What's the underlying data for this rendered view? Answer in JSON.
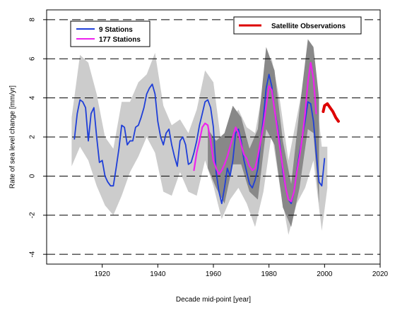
{
  "chart_data": {
    "type": "line",
    "title": "",
    "xlabel": "Decade mid-point [year]",
    "ylabel": "Rate of sea level change [mm/yr]",
    "xlim": [
      1900,
      2020
    ],
    "ylim": [
      -4.5,
      8.5
    ],
    "x_ticks": [
      1920,
      1940,
      1960,
      1980,
      2000,
      2020
    ],
    "y_ticks": [
      -4,
      -2,
      0,
      2,
      4,
      6,
      8
    ],
    "dashed_y_gridlines": [
      -4,
      -2,
      0,
      2,
      4,
      6,
      8
    ],
    "legend_left": {
      "position": "top-left",
      "entries": [
        "9 Stations",
        "177 Stations"
      ]
    },
    "legend_right": {
      "position": "top-right",
      "entries": [
        "Satellite Observations"
      ]
    },
    "colors": {
      "nine_stations": "#1f3fd8",
      "one77_stations": "#ee22ee",
      "satellite": "#dd0000",
      "band_light": "#cccccc",
      "band_dark": "#888888"
    },
    "series": [
      {
        "name": "9 Stations",
        "x": [
          1910,
          1911,
          1912,
          1913,
          1914,
          1915,
          1916,
          1917,
          1918,
          1919,
          1920,
          1921,
          1922,
          1923,
          1924,
          1925,
          1926,
          1927,
          1928,
          1929,
          1930,
          1931,
          1932,
          1933,
          1934,
          1935,
          1936,
          1937,
          1938,
          1939,
          1940,
          1941,
          1942,
          1943,
          1944,
          1945,
          1946,
          1947,
          1948,
          1949,
          1950,
          1951,
          1952,
          1953,
          1954,
          1955,
          1956,
          1957,
          1958,
          1959,
          1960,
          1961,
          1962,
          1963,
          1964,
          1965,
          1966,
          1967,
          1968,
          1969,
          1970,
          1971,
          1972,
          1973,
          1974,
          1975,
          1976,
          1977,
          1978,
          1979,
          1980,
          1981,
          1982,
          1983,
          1984,
          1985,
          1986,
          1987,
          1988,
          1989,
          1990,
          1991,
          1992,
          1993,
          1994,
          1995,
          1996,
          1997,
          1998,
          1999,
          2000
        ],
        "values": [
          1.9,
          3.2,
          3.9,
          3.8,
          3.5,
          1.8,
          3.2,
          3.5,
          2.0,
          0.7,
          0.8,
          0.0,
          -0.3,
          -0.5,
          -0.5,
          0.4,
          1.4,
          2.6,
          2.5,
          1.6,
          1.8,
          1.8,
          2.5,
          2.6,
          3.0,
          3.5,
          4.2,
          4.5,
          4.7,
          4.2,
          2.8,
          2.0,
          1.6,
          2.2,
          2.4,
          1.6,
          1.0,
          0.5,
          1.8,
          2.0,
          1.6,
          0.6,
          0.7,
          1.2,
          1.8,
          2.6,
          3.2,
          3.8,
          3.9,
          3.5,
          2.5,
          0.2,
          -0.8,
          -1.4,
          -0.6,
          0.4,
          0.0,
          0.8,
          2.2,
          2.4,
          1.8,
          0.8,
          0.2,
          -0.4,
          -0.6,
          -0.2,
          0.4,
          1.8,
          3.0,
          4.5,
          5.2,
          4.6,
          3.4,
          2.6,
          1.6,
          0.2,
          -0.6,
          -1.2,
          -1.4,
          -0.8,
          0.3,
          1.2,
          2.0,
          2.8,
          3.8,
          3.7,
          2.8,
          1.2,
          -0.3,
          -0.5,
          0.9
        ]
      },
      {
        "name": "177 Stations",
        "x": [
          1953,
          1954,
          1955,
          1956,
          1957,
          1958,
          1959,
          1960,
          1961,
          1962,
          1963,
          1964,
          1965,
          1966,
          1967,
          1968,
          1969,
          1970,
          1971,
          1972,
          1973,
          1974,
          1975,
          1976,
          1977,
          1978,
          1979,
          1980,
          1981,
          1982,
          1983,
          1984,
          1985,
          1986,
          1987,
          1988,
          1989,
          1990,
          1991,
          1992,
          1993,
          1994,
          1995,
          1996,
          1997
        ],
        "values": [
          0.3,
          1.2,
          1.8,
          2.5,
          2.7,
          2.6,
          1.8,
          0.8,
          0.4,
          0.1,
          0.3,
          0.6,
          1.0,
          1.5,
          2.0,
          2.5,
          2.2,
          1.6,
          1.1,
          0.9,
          0.5,
          0.3,
          0.4,
          1.0,
          1.8,
          2.6,
          3.6,
          4.6,
          4.4,
          3.4,
          2.4,
          1.4,
          0.4,
          -0.6,
          -1.2,
          -1.3,
          -0.8,
          0.2,
          1.0,
          2.0,
          3.2,
          4.8,
          5.8,
          5.0,
          3.2
        ]
      },
      {
        "name": "Satellite Observations",
        "x": [
          1999.5,
          2000,
          2001,
          2002,
          2003,
          2004,
          2005
        ],
        "values": [
          3.3,
          3.6,
          3.7,
          3.5,
          3.3,
          3.0,
          2.8
        ]
      }
    ],
    "uncertainty_bands": [
      {
        "shade": "light",
        "x": [
          1909,
          1912,
          1915,
          1918,
          1921,
          1924,
          1927,
          1930,
          1933,
          1936,
          1939,
          1942,
          1945,
          1948,
          1951,
          1954,
          1957,
          1960,
          1963,
          1966,
          1969,
          1972,
          1975,
          1978,
          1981,
          1984,
          1987,
          1990,
          1993,
          1996,
          1999,
          2001
        ],
        "upper": [
          3.0,
          6.2,
          5.8,
          4.2,
          2.0,
          1.4,
          3.8,
          3.8,
          4.8,
          5.2,
          6.3,
          3.6,
          2.6,
          2.9,
          2.2,
          3.4,
          5.4,
          4.8,
          1.5,
          2.8,
          3.4,
          2.5,
          2.2,
          4.6,
          6.0,
          3.8,
          0.8,
          3.0,
          5.2,
          5.6,
          1.5,
          1.5
        ],
        "lower": [
          0.5,
          1.5,
          0.8,
          -0.5,
          -1.5,
          -2.0,
          -1.0,
          0.2,
          1.0,
          2.0,
          1.2,
          -0.8,
          -1.0,
          0.2,
          -0.8,
          -1.0,
          0.8,
          -0.5,
          -2.2,
          -1.2,
          -0.6,
          -1.4,
          -2.6,
          -0.8,
          2.2,
          -0.6,
          -3.0,
          -1.4,
          -0.6,
          0.8,
          -2.8,
          -0.6
        ]
      },
      {
        "shade": "dark",
        "x": [
          1958,
          1961,
          1964,
          1967,
          1970,
          1973,
          1976,
          1979,
          1982,
          1985,
          1988,
          1991,
          1994,
          1996,
          1998
        ],
        "upper": [
          2.4,
          1.8,
          2.2,
          3.6,
          3.0,
          1.4,
          2.4,
          6.6,
          5.4,
          1.8,
          -0.4,
          3.4,
          7.0,
          6.6,
          4.0
        ],
        "lower": [
          0.4,
          -0.6,
          -1.4,
          0.6,
          0.6,
          -0.8,
          -1.2,
          2.4,
          1.6,
          -1.6,
          -2.6,
          -0.6,
          2.4,
          2.2,
          -1.4
        ]
      }
    ]
  }
}
